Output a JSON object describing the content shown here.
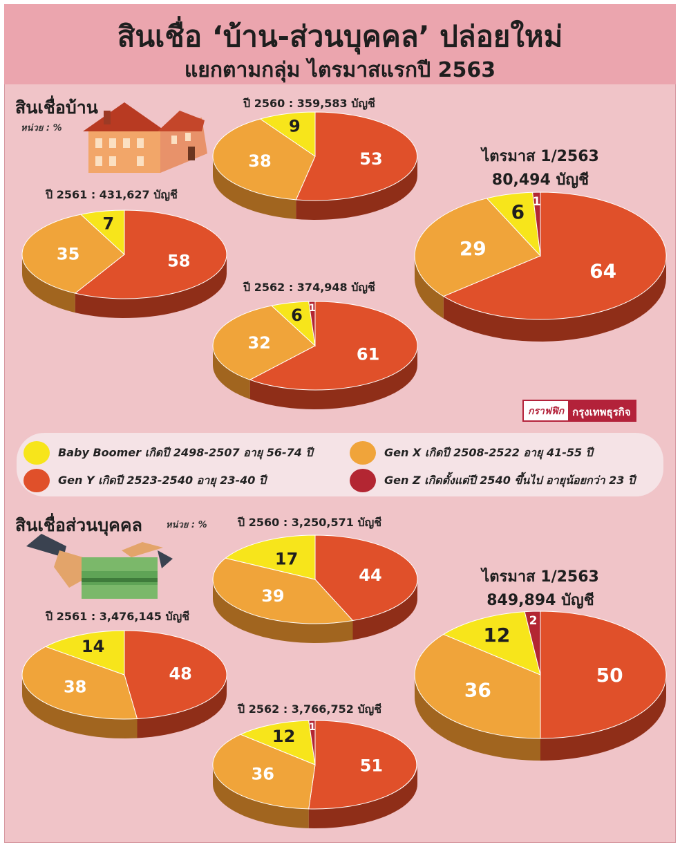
{
  "header": {
    "title": "สินเชื่อ ‘บ้าน-ส่วนบุคคล’ ปล่อยใหม่",
    "subtitle": "แยกตามกลุ่ม ไตรมาสแรกปี 2563"
  },
  "sections": {
    "home": {
      "label": "สินเชื่อบ้าน",
      "unit": "หน่วย : %"
    },
    "personal": {
      "label": "สินเชื่อส่วนบุคคล",
      "unit": "หน่วย : %"
    }
  },
  "credit": {
    "a": "กราฟฟิก",
    "b": "กรุงเทพธุรกิจ"
  },
  "legend": [
    {
      "key": "boomer",
      "label": "Baby Boomer เกิดปี 2498-2507 อายุ 56-74 ปี"
    },
    {
      "key": "genx",
      "label": "Gen X เกิดปี 2508-2522 อายุ 41-55 ปี"
    },
    {
      "key": "geny",
      "label": "Gen Y เกิดปี 2523-2540 อายุ 23-40 ปี"
    },
    {
      "key": "genz",
      "label": "Gen Z เกิดตั้งแต่ปี 2540 ขึ้นไป อายุน้อยกว่า 23 ปี"
    }
  ],
  "colors": {
    "boomer": "#f7e51b",
    "genx": "#f0a43a",
    "geny": "#e0502a",
    "genz": "#b32632",
    "background": "#f0c4c8",
    "title_band": "#eba5ae"
  },
  "icons": {
    "home": "house-icon",
    "personal": "money-handover-icon"
  },
  "chart_data": [
    {
      "type": "pie",
      "section": "home",
      "caption": "ปี 2560 : 359,583 บัญชี",
      "slices": [
        {
          "group": "boomer",
          "value": 9
        },
        {
          "group": "genx",
          "value": 38
        },
        {
          "group": "geny",
          "value": 53
        }
      ]
    },
    {
      "type": "pie",
      "section": "home",
      "caption": "ปี 2561 : 431,627 บัญชี",
      "slices": [
        {
          "group": "boomer",
          "value": 7
        },
        {
          "group": "genx",
          "value": 35
        },
        {
          "group": "geny",
          "value": 58
        }
      ]
    },
    {
      "type": "pie",
      "section": "home",
      "caption": "ปี 2562 : 374,948 บัญชี",
      "slices": [
        {
          "group": "boomer",
          "value": 6
        },
        {
          "group": "genx",
          "value": 32
        },
        {
          "group": "geny",
          "value": 61
        },
        {
          "group": "genz",
          "value": 1
        }
      ]
    },
    {
      "type": "pie",
      "section": "home",
      "caption_line1": "ไตรมาส 1/2563",
      "caption_line2": "80,494 บัญชี",
      "slices": [
        {
          "group": "boomer",
          "value": 6
        },
        {
          "group": "genx",
          "value": 29
        },
        {
          "group": "geny",
          "value": 64
        },
        {
          "group": "genz",
          "value": 1
        }
      ]
    },
    {
      "type": "pie",
      "section": "personal",
      "caption": "ปี 2560 : 3,250,571 บัญชี",
      "slices": [
        {
          "group": "boomer",
          "value": 17
        },
        {
          "group": "genx",
          "value": 39
        },
        {
          "group": "geny",
          "value": 44
        }
      ]
    },
    {
      "type": "pie",
      "section": "personal",
      "caption": "ปี 2561 : 3,476,145 บัญชี",
      "slices": [
        {
          "group": "boomer",
          "value": 14
        },
        {
          "group": "genx",
          "value": 38
        },
        {
          "group": "geny",
          "value": 48
        }
      ]
    },
    {
      "type": "pie",
      "section": "personal",
      "caption": "ปี 2562 : 3,766,752 บัญชี",
      "slices": [
        {
          "group": "boomer",
          "value": 12
        },
        {
          "group": "genx",
          "value": 36
        },
        {
          "group": "geny",
          "value": 51
        },
        {
          "group": "genz",
          "value": 1
        }
      ]
    },
    {
      "type": "pie",
      "section": "personal",
      "caption_line1": "ไตรมาส 1/2563",
      "caption_line2": "849,894 บัญชี",
      "slices": [
        {
          "group": "boomer",
          "value": 12
        },
        {
          "group": "genx",
          "value": 36
        },
        {
          "group": "geny",
          "value": 50
        },
        {
          "group": "genz",
          "value": 2
        }
      ]
    }
  ]
}
